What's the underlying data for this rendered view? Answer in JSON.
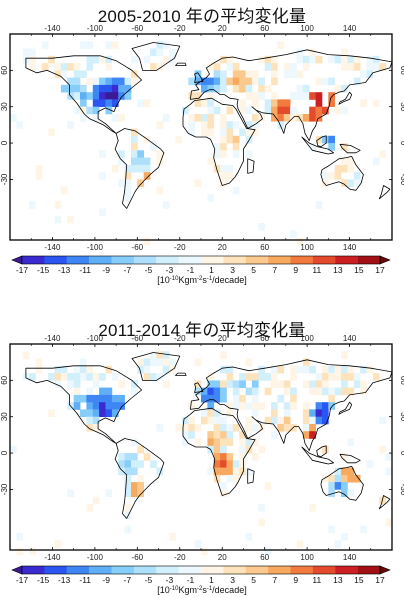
{
  "panels": [
    {
      "title": "2005-2010 年の平均変化量",
      "lon_ticks": [
        "-140",
        "-100",
        "-60",
        "-20",
        "20",
        "60",
        "100",
        "140"
      ],
      "lat_ticks": [
        "60",
        "30",
        "0",
        "-30"
      ],
      "colorbar": {
        "labels": [
          "-17",
          "-15",
          "-13",
          "-11",
          "-9",
          "-7",
          "-5",
          "-3",
          "-1",
          "1",
          "3",
          "5",
          "7",
          "9",
          "11",
          "13",
          "15",
          "17"
        ],
        "unit_prefix": "[10",
        "unit_exp1": "-10",
        "unit_mid": "Kgm",
        "unit_exp2": "-2",
        "unit_s": "s",
        "unit_exp3": "-1",
        "unit_suffix": "/decade]"
      },
      "hotspots": [
        {
          "lon": -85,
          "lat": 40,
          "r": 14,
          "value": -16
        },
        {
          "lon": -100,
          "lat": 35,
          "r": 10,
          "value": -13
        },
        {
          "lon": -120,
          "lat": 45,
          "r": 8,
          "value": -9
        },
        {
          "lon": -60,
          "lat": -15,
          "r": 10,
          "value": -7
        },
        {
          "lon": -55,
          "lat": -30,
          "r": 7,
          "value": 9
        },
        {
          "lon": 5,
          "lat": 50,
          "r": 9,
          "value": -12
        },
        {
          "lon": 35,
          "lat": 50,
          "r": 8,
          "value": 7
        },
        {
          "lon": 75,
          "lat": 28,
          "r": 9,
          "value": 13
        },
        {
          "lon": 115,
          "lat": 35,
          "r": 10,
          "value": 17
        },
        {
          "lon": 105,
          "lat": 25,
          "r": 7,
          "value": 15
        },
        {
          "lon": 120,
          "lat": 5,
          "r": 9,
          "value": -11
        },
        {
          "lon": 30,
          "lat": 0,
          "r": 8,
          "value": 5
        },
        {
          "lon": 135,
          "lat": -25,
          "r": 9,
          "value": 3
        }
      ]
    },
    {
      "title": "2011-2014 年の平均変化量",
      "lon_ticks": [
        "-140",
        "-100",
        "-60",
        "-20",
        "20",
        "60",
        "100",
        "140"
      ],
      "lat_ticks": [
        "60",
        "30",
        "0",
        "-30"
      ],
      "colorbar": {
        "labels": [
          "-17",
          "-15",
          "-13",
          "-11",
          "-9",
          "-7",
          "-5",
          "-3",
          "-1",
          "1",
          "3",
          "5",
          "7",
          "9",
          "11",
          "13",
          "15",
          "17"
        ],
        "unit_prefix": "[10",
        "unit_exp1": "-10",
        "unit_mid": "Kgm",
        "unit_exp2": "-2",
        "unit_s": "s",
        "unit_exp3": "-1",
        "unit_suffix": "/decade]"
      },
      "hotspots": [
        {
          "lon": -90,
          "lat": 38,
          "r": 14,
          "value": -15
        },
        {
          "lon": -110,
          "lat": 40,
          "r": 9,
          "value": -11
        },
        {
          "lon": -70,
          "lat": -10,
          "r": 10,
          "value": -7
        },
        {
          "lon": -60,
          "lat": -30,
          "r": 8,
          "value": 9
        },
        {
          "lon": 10,
          "lat": 48,
          "r": 10,
          "value": -13
        },
        {
          "lon": 40,
          "lat": 55,
          "r": 8,
          "value": -7
        },
        {
          "lon": 20,
          "lat": -10,
          "r": 10,
          "value": 11
        },
        {
          "lon": 15,
          "lat": 10,
          "r": 8,
          "value": 7
        },
        {
          "lon": 80,
          "lat": 25,
          "r": 8,
          "value": 5
        },
        {
          "lon": 115,
          "lat": 32,
          "r": 10,
          "value": -17
        },
        {
          "lon": 105,
          "lat": 15,
          "r": 8,
          "value": 13
        },
        {
          "lon": 130,
          "lat": -28,
          "r": 9,
          "value": -9
        },
        {
          "lon": 140,
          "lat": -20,
          "r": 7,
          "value": 9
        }
      ]
    }
  ],
  "palette": [
    "#3d1a95",
    "#3b2ad0",
    "#2b55f0",
    "#3f86f5",
    "#5faff8",
    "#86cdfa",
    "#aee0fb",
    "#d2effc",
    "#ecf8fd",
    "#fff5e6",
    "#fde3bc",
    "#fbc98d",
    "#f7a95f",
    "#f27a3e",
    "#e44a2c",
    "#cc1f23",
    "#a11014",
    "#6a0808"
  ]
}
